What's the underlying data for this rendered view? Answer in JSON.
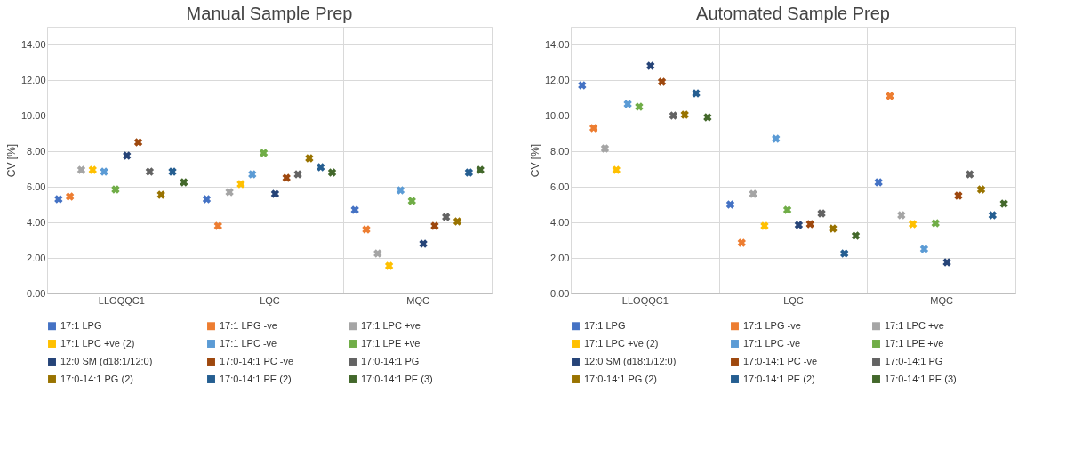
{
  "chart_data": [
    {
      "type": "scatter",
      "title": "Manual Sample Prep",
      "ylabel": "CV [%]",
      "categories": [
        "LLOQQC1",
        "LQC",
        "MQC"
      ],
      "ylim": [
        0,
        15
      ],
      "yticks": [
        {
          "value": 0,
          "label": "0.00"
        },
        {
          "value": 2,
          "label": "2.00"
        },
        {
          "value": 4,
          "label": "4.00"
        },
        {
          "value": 6,
          "label": "6.00"
        },
        {
          "value": 8,
          "label": "8.00"
        },
        {
          "value": 10,
          "label": "10.00"
        },
        {
          "value": 12,
          "label": "12.00"
        },
        {
          "value": 14,
          "label": "14.00"
        }
      ],
      "grid": true,
      "legend": "bottom",
      "marker": "cross",
      "series": [
        {
          "name": "17:1 LPG",
          "color": "#4472c4",
          "values": [
            5.3,
            5.3,
            4.7
          ]
        },
        {
          "name": "17:1 LPG -ve",
          "color": "#ed7d31",
          "values": [
            5.45,
            3.8,
            3.6
          ]
        },
        {
          "name": "17:1 LPC +ve",
          "color": "#a5a5a5",
          "values": [
            6.95,
            5.7,
            2.25
          ]
        },
        {
          "name": "17:1 LPC +ve (2)",
          "color": "#ffc000",
          "values": [
            6.95,
            6.15,
            1.55
          ]
        },
        {
          "name": "17:1 LPC -ve",
          "color": "#5b9bd5",
          "values": [
            6.85,
            6.7,
            5.8
          ]
        },
        {
          "name": "17:1 LPE +ve",
          "color": "#70ad47",
          "values": [
            5.85,
            7.9,
            5.2
          ]
        },
        {
          "name": "12:0 SM (d18:1/12:0)",
          "color": "#264478",
          "values": [
            7.75,
            5.6,
            2.8
          ]
        },
        {
          "name": "17:0-14:1 PC -ve",
          "color": "#9e480e",
          "values": [
            8.5,
            6.5,
            3.8
          ]
        },
        {
          "name": "17:0-14:1 PG",
          "color": "#636363",
          "values": [
            6.85,
            6.7,
            4.3
          ]
        },
        {
          "name": "17:0-14:1 PG (2)",
          "color": "#997300",
          "values": [
            5.55,
            7.6,
            4.05
          ]
        },
        {
          "name": "17:0-14:1 PE (2)",
          "color": "#255e91",
          "values": [
            6.85,
            7.1,
            6.8
          ]
        },
        {
          "name": "17:0-14:1 PE (3)",
          "color": "#43682b",
          "values": [
            6.25,
            6.8,
            6.95
          ]
        }
      ]
    },
    {
      "type": "scatter",
      "title": "Automated Sample Prep",
      "ylabel": "CV [%]",
      "categories": [
        "LLOQQC1",
        "LQC",
        "MQC"
      ],
      "ylim": [
        0,
        15
      ],
      "yticks": [
        {
          "value": 0,
          "label": "0.00"
        },
        {
          "value": 2,
          "label": "2.00"
        },
        {
          "value": 4,
          "label": "4.00"
        },
        {
          "value": 6,
          "label": "6.00"
        },
        {
          "value": 8,
          "label": "8.00"
        },
        {
          "value": 10,
          "label": "10.00"
        },
        {
          "value": 12,
          "label": "12.00"
        },
        {
          "value": 14,
          "label": "14.00"
        }
      ],
      "grid": true,
      "legend": "bottom",
      "marker": "cross",
      "series": [
        {
          "name": "17:1 LPG",
          "color": "#4472c4",
          "values": [
            11.7,
            5.0,
            6.25
          ]
        },
        {
          "name": "17:1 LPG -ve",
          "color": "#ed7d31",
          "values": [
            9.3,
            2.85,
            11.1
          ]
        },
        {
          "name": "17:1 LPC +ve",
          "color": "#a5a5a5",
          "values": [
            8.15,
            5.6,
            4.4
          ]
        },
        {
          "name": "17:1 LPC +ve (2)",
          "color": "#ffc000",
          "values": [
            6.95,
            3.8,
            3.9
          ]
        },
        {
          "name": "17:1 LPC -ve",
          "color": "#5b9bd5",
          "values": [
            10.65,
            8.7,
            2.5
          ]
        },
        {
          "name": "17:1 LPE +ve",
          "color": "#70ad47",
          "values": [
            10.5,
            4.7,
            3.95
          ]
        },
        {
          "name": "12:0 SM (d18:1/12:0)",
          "color": "#264478",
          "values": [
            12.8,
            3.85,
            1.75
          ]
        },
        {
          "name": "17:0-14:1 PC -ve",
          "color": "#9e480e",
          "values": [
            11.9,
            3.9,
            5.5
          ]
        },
        {
          "name": "17:0-14:1 PG",
          "color": "#636363",
          "values": [
            10.0,
            4.5,
            6.7
          ]
        },
        {
          "name": "17:0-14:1 PG (2)",
          "color": "#997300",
          "values": [
            10.05,
            3.65,
            5.85
          ]
        },
        {
          "name": "17:0-14:1 PE (2)",
          "color": "#255e91",
          "values": [
            11.25,
            2.25,
            4.4
          ]
        },
        {
          "name": "17:0-14:1 PE (3)",
          "color": "#43682b",
          "values": [
            9.9,
            3.25,
            5.05
          ]
        }
      ]
    }
  ]
}
